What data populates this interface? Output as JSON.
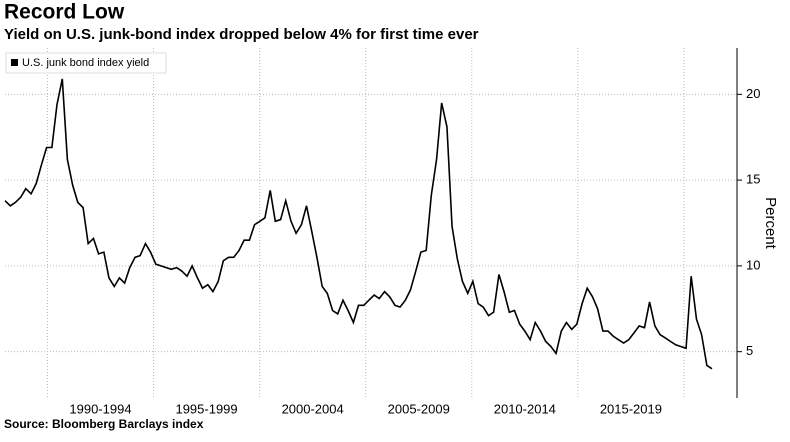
{
  "chart_data": {
    "type": "line",
    "title": "Record Low",
    "subtitle": "Yield on U.S. junk-bond index dropped below 4% for first time ever",
    "source": "Source: Bloomberg Barclays index",
    "y_label": "Percent",
    "legend": "upper left",
    "grid": true,
    "xlim": [
      1988,
      2022.5
    ],
    "xticks": [
      {
        "value": 1992.5,
        "label": "1990-1994"
      },
      {
        "value": 1997.5,
        "label": "1995-1999"
      },
      {
        "value": 2002.5,
        "label": "2000-2004"
      },
      {
        "value": 2007.5,
        "label": "2005-2009"
      },
      {
        "value": 2012.5,
        "label": "2010-2014"
      },
      {
        "value": 2017.5,
        "label": "2015-2019"
      }
    ],
    "xgrid": [
      1990,
      1995,
      2000,
      2005,
      2010,
      2015,
      2020
    ],
    "ylim": [
      2.3,
      22.7
    ],
    "yticks": [
      5,
      10,
      15,
      20
    ],
    "x": [
      1988.0,
      1988.25,
      1988.49,
      1988.74,
      1988.98,
      1989.23,
      1989.47,
      1989.72,
      1989.96,
      1990.21,
      1990.45,
      1990.7,
      1990.94,
      1991.19,
      1991.43,
      1991.68,
      1991.92,
      1992.17,
      1992.41,
      1992.66,
      1992.9,
      1993.15,
      1993.39,
      1993.64,
      1993.88,
      1994.13,
      1994.37,
      1994.62,
      1994.86,
      1995.11,
      1995.35,
      1995.6,
      1995.84,
      1996.09,
      1996.33,
      1996.58,
      1996.82,
      1997.07,
      1997.31,
      1997.56,
      1997.8,
      1998.05,
      1998.29,
      1998.54,
      1998.78,
      1999.03,
      1999.27,
      1999.52,
      1999.76,
      2000.01,
      2000.25,
      2000.5,
      2000.74,
      2000.99,
      2001.23,
      2001.48,
      2001.72,
      2001.97,
      2002.21,
      2002.46,
      2002.7,
      2002.95,
      2003.19,
      2003.44,
      2003.68,
      2003.93,
      2004.17,
      2004.42,
      2004.66,
      2004.91,
      2005.15,
      2005.4,
      2005.64,
      2005.89,
      2006.13,
      2006.38,
      2006.62,
      2006.87,
      2007.11,
      2007.36,
      2007.6,
      2007.85,
      2008.09,
      2008.34,
      2008.58,
      2008.83,
      2009.07,
      2009.32,
      2009.56,
      2009.81,
      2010.05,
      2010.3,
      2010.54,
      2010.79,
      2011.03,
      2011.28,
      2011.52,
      2011.77,
      2012.01,
      2012.26,
      2012.5,
      2012.75,
      2012.99,
      2013.24,
      2013.48,
      2013.73,
      2013.97,
      2014.22,
      2014.46,
      2014.71,
      2014.95,
      2015.2,
      2015.44,
      2015.69,
      2015.93,
      2016.18,
      2016.42,
      2016.67,
      2016.91,
      2017.16,
      2017.4,
      2017.65,
      2017.89,
      2018.14,
      2018.38,
      2018.63,
      2018.87,
      2019.12,
      2019.36,
      2019.61,
      2019.85,
      2020.1,
      2020.34,
      2020.59,
      2020.83,
      2021.08,
      2021.32
    ],
    "series": [
      {
        "name": "U.S. junk bond index yield",
        "color": "#000000",
        "values": [
          13.8,
          13.5,
          13.7,
          14.0,
          14.5,
          14.2,
          14.8,
          15.9,
          16.9,
          16.9,
          19.4,
          20.9,
          16.2,
          14.7,
          13.7,
          13.4,
          11.3,
          11.6,
          10.7,
          10.8,
          9.3,
          8.8,
          9.3,
          9.0,
          9.9,
          10.5,
          10.6,
          11.3,
          10.8,
          10.1,
          10.0,
          9.9,
          9.8,
          9.9,
          9.7,
          9.4,
          10.0,
          9.3,
          8.7,
          8.9,
          8.5,
          9.1,
          10.3,
          10.5,
          10.5,
          10.9,
          11.5,
          11.5,
          12.4,
          12.6,
          12.8,
          14.4,
          12.6,
          12.7,
          13.8,
          12.6,
          11.9,
          12.4,
          13.5,
          12.0,
          10.5,
          8.8,
          8.4,
          7.4,
          7.2,
          8.0,
          7.4,
          6.7,
          7.7,
          7.7,
          8.0,
          8.3,
          8.1,
          8.5,
          8.2,
          7.7,
          7.6,
          8.0,
          8.6,
          9.7,
          10.8,
          10.9,
          14.1,
          16.2,
          19.5,
          18.1,
          12.3,
          10.4,
          9.1,
          8.4,
          9.1,
          7.8,
          7.6,
          7.1,
          7.3,
          9.5,
          8.5,
          7.3,
          7.4,
          6.6,
          6.2,
          5.7,
          6.7,
          6.2,
          5.6,
          5.3,
          4.9,
          6.2,
          6.7,
          6.3,
          6.6,
          7.8,
          8.7,
          8.2,
          7.5,
          6.2,
          6.2,
          5.9,
          5.7,
          5.5,
          5.7,
          6.1,
          6.5,
          6.4,
          7.9,
          6.5,
          6.0,
          5.8,
          5.6,
          5.4,
          5.3,
          5.2,
          9.4,
          6.9,
          6.0,
          4.2,
          4.0
        ]
      }
    ]
  }
}
